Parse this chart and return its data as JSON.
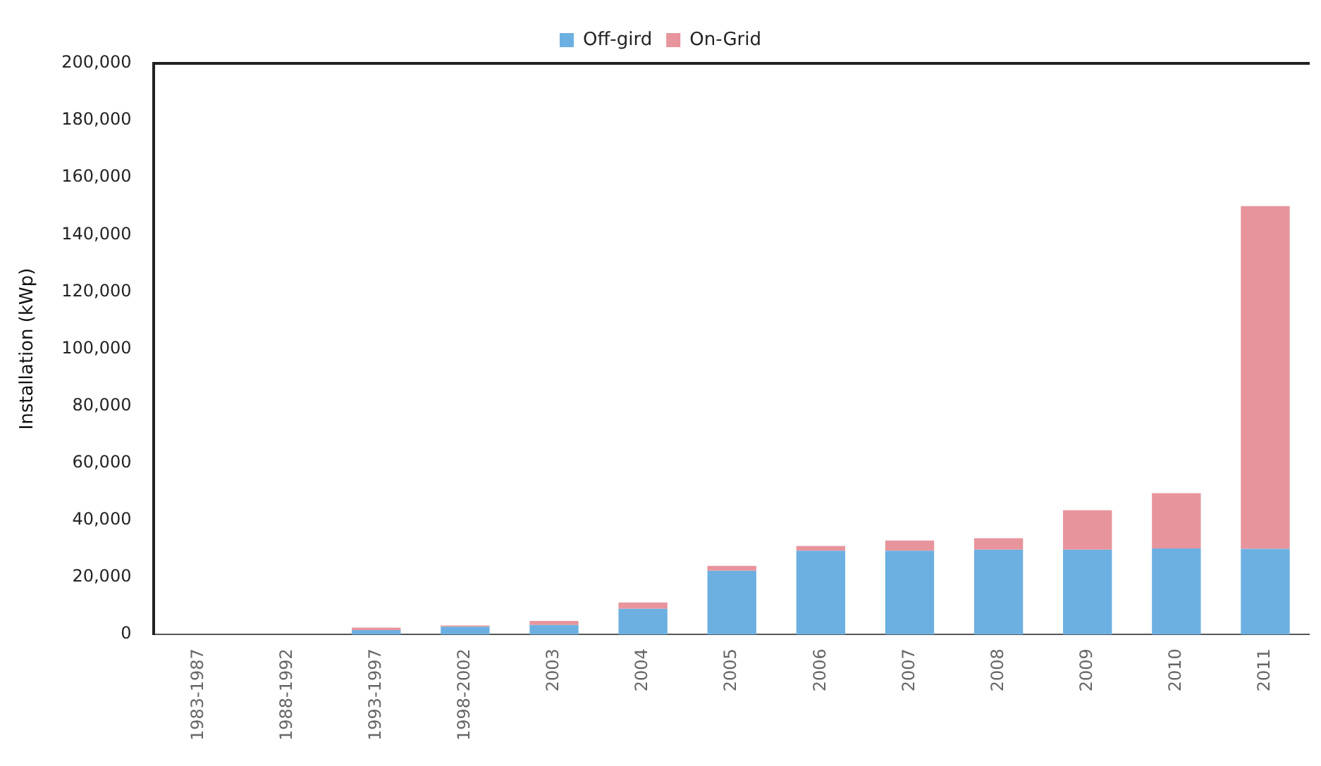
{
  "chart_data": {
    "type": "bar",
    "stacked": true,
    "ylabel": "Installation (kWp)",
    "categories": [
      "1983-1987",
      "1988-1992",
      "1993-1997",
      "1998-2002",
      "2003",
      "2004",
      "2005",
      "2006",
      "2007",
      "2008",
      "2009",
      "2010",
      "2011"
    ],
    "series": [
      {
        "name": "Off-gird",
        "color": "#6cb0e2",
        "values": [
          0,
          0,
          1500,
          2700,
          3300,
          9000,
          22300,
          29300,
          29300,
          29700,
          29700,
          30100,
          30000
        ]
      },
      {
        "name": "On-Grid",
        "color": "#e8949c",
        "values": [
          0,
          0,
          900,
          400,
          1400,
          2200,
          1700,
          1700,
          3600,
          4000,
          13800,
          19400,
          120000
        ]
      }
    ],
    "ylim": [
      0,
      200000
    ],
    "yticks": [
      {
        "value": 0,
        "label": "0"
      },
      {
        "value": 20000,
        "label": "20,000"
      },
      {
        "value": 40000,
        "label": "40,000"
      },
      {
        "value": 60000,
        "label": "60,000"
      },
      {
        "value": 80000,
        "label": "80,000"
      },
      {
        "value": 100000,
        "label": "100,000"
      },
      {
        "value": 120000,
        "label": "120,000"
      },
      {
        "value": 140000,
        "label": "140,000"
      },
      {
        "value": 160000,
        "label": "160,000"
      },
      {
        "value": 180000,
        "label": "180,000"
      },
      {
        "value": 200000,
        "label": "200,000"
      }
    ],
    "grid": false,
    "legend": "top"
  }
}
